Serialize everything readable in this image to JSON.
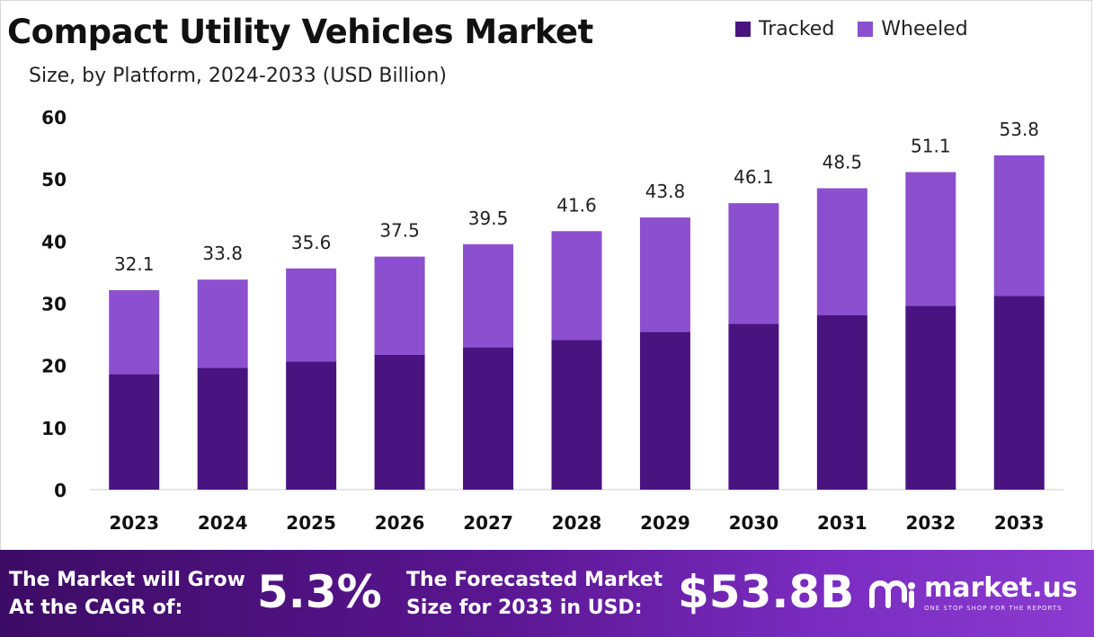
{
  "header": {
    "title": "Compact Utility Vehicles Market",
    "subtitle": "Size, by Platform, 2024-2033 (USD Billion)"
  },
  "legend": {
    "items": [
      {
        "label": "Tracked",
        "color": "#4a1480"
      },
      {
        "label": "Wheeled",
        "color": "#8b4fd0"
      }
    ]
  },
  "chart_data": {
    "type": "bar",
    "stacked": true,
    "title": "Compact Utility Vehicles Market",
    "subtitle": "Size, by Platform, 2024-2033 (USD Billion)",
    "categories": [
      "2023",
      "2024",
      "2025",
      "2026",
      "2027",
      "2028",
      "2029",
      "2030",
      "2031",
      "2032",
      "2033"
    ],
    "series": [
      {
        "name": "Tracked",
        "color": "#4a1480",
        "values": [
          18.6,
          19.6,
          20.6,
          21.7,
          22.9,
          24.1,
          25.4,
          26.7,
          28.1,
          29.6,
          31.2
        ]
      },
      {
        "name": "Wheeled",
        "color": "#8b4fd0",
        "values": [
          13.5,
          14.2,
          15.0,
          15.8,
          16.6,
          17.5,
          18.4,
          19.4,
          20.4,
          21.5,
          22.6
        ]
      }
    ],
    "totals": [
      "32.1",
      "33.8",
      "35.6",
      "37.5",
      "39.5",
      "41.6",
      "43.8",
      "46.1",
      "48.5",
      "51.1",
      "53.8"
    ],
    "yticks": [
      "0",
      "10",
      "20",
      "30",
      "40",
      "50",
      "60"
    ],
    "ylim": [
      0,
      60
    ],
    "grid": false,
    "legend_position": "top-right"
  },
  "footer": {
    "cagr_label_line1": "The Market will Grow",
    "cagr_label_line2": "At the CAGR of:",
    "cagr_value": "5.3%",
    "forecast_label_line1": "The Forecasted Market",
    "forecast_label_line2": "Size for 2033 in USD:",
    "forecast_value": "$53.8B",
    "brand_name": "market.us",
    "brand_tagline": "ONE STOP SHOP FOR THE REPORTS"
  }
}
